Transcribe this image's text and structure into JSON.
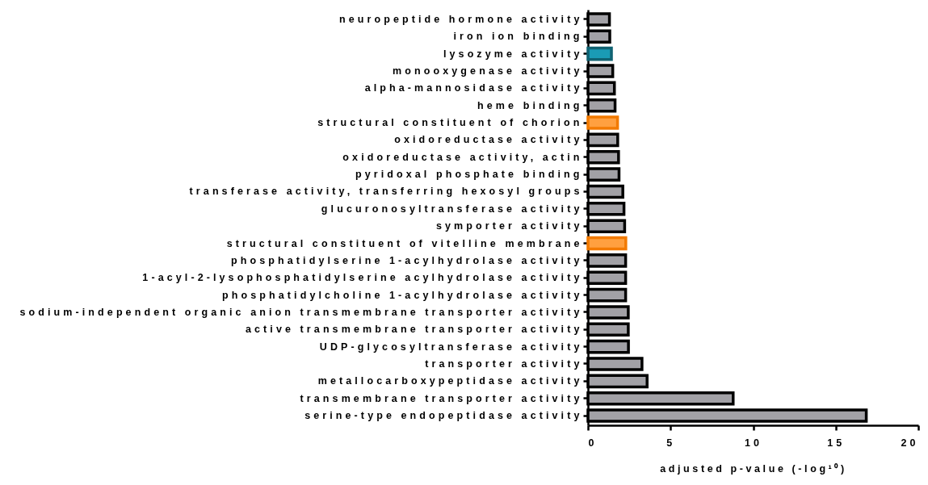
{
  "chart_data": {
    "type": "bar",
    "orientation": "horizontal",
    "categories": [
      "neuropeptide hormone activity",
      "iron ion binding",
      "lysozyme activity",
      "monooxygenase activity",
      "alpha-mannosidase activity",
      "heme binding",
      "structural constituent of chorion",
      "oxidoreductase activity",
      "oxidoreductase activity, actin",
      "pyridoxal phosphate binding",
      "transferase activity, transferring hexosyl groups",
      "glucuronosyltransferase activity",
      "symporter activity",
      "structural constituent of vitelline membrane",
      "phosphatidylserine 1-acylhydrolase activity",
      "1-acyl-2-lysophosphatidylserine acylhydrolase activity",
      "phosphatidylcholine 1-acylhydrolase activity",
      "sodium-independent organic anion transmembrane transporter activity",
      "active transmembrane transporter activity",
      "UDP-glycosyltransferase activity",
      "transporter activity",
      "metallocarboxypeptidase activity",
      "transmembrane transporter activity",
      "serine-type endopeptidase activity"
    ],
    "values": [
      1.3,
      1.32,
      1.42,
      1.5,
      1.6,
      1.64,
      1.79,
      1.8,
      1.85,
      1.88,
      2.11,
      2.18,
      2.22,
      2.29,
      2.28,
      2.28,
      2.28,
      2.44,
      2.44,
      2.45,
      3.27,
      3.58,
      8.79,
      16.85
    ],
    "colors": [
      "#a2a1a6",
      "#a2a1a6",
      "#1a9bb5",
      "#a2a1a6",
      "#a2a1a6",
      "#a2a1a6",
      "#ffa040",
      "#a2a1a6",
      "#a2a1a6",
      "#a2a1a6",
      "#a2a1a6",
      "#a2a1a6",
      "#a2a1a6",
      "#ffa040",
      "#a2a1a6",
      "#a2a1a6",
      "#a2a1a6",
      "#a2a1a6",
      "#a2a1a6",
      "#a2a1a6",
      "#a2a1a6",
      "#a2a1a6",
      "#a2a1a6",
      "#a2a1a6"
    ],
    "xlabel": "adjusted p-value (-log¹⁰)",
    "xlim": [
      0,
      20
    ],
    "xticks": [
      0,
      5,
      10,
      15,
      20
    ]
  }
}
